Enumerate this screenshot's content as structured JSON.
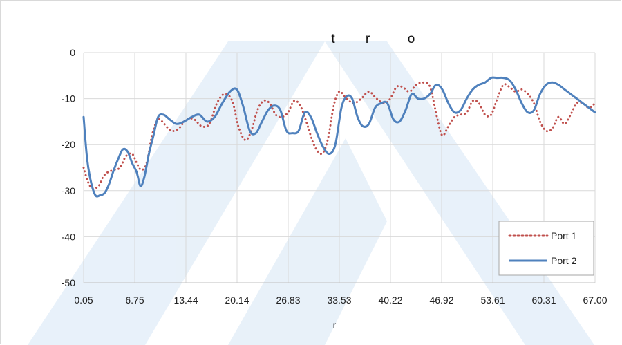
{
  "chart_data": {
    "type": "line",
    "title_fragments": [
      "t",
      "r",
      "o"
    ],
    "xlabel": "r",
    "ylabel": "",
    "x_tick_labels": [
      "0.05",
      "6.75",
      "13.44",
      "20.14",
      "26.83",
      "33.53",
      "40.22",
      "46.92",
      "53.61",
      "60.31",
      "67.00"
    ],
    "xlim": [
      0.05,
      67.0
    ],
    "ylim": [
      -50,
      0
    ],
    "y_ticks": [
      0,
      -10,
      -20,
      -30,
      -40,
      -50
    ],
    "grid": true,
    "legend_position": "bottom-right",
    "series": [
      {
        "name": "Port 1",
        "color": "#c0504d",
        "style": "dotted",
        "x": [
          0.05,
          0.6,
          1.2,
          2.0,
          2.6,
          3.2,
          4.0,
          4.8,
          5.6,
          6.4,
          7.0,
          7.6,
          8.3,
          9.0,
          9.8,
          10.6,
          11.5,
          12.5,
          13.5,
          14.5,
          15.5,
          16.5,
          17.5,
          18.5,
          19.5,
          20.3,
          21.2,
          22.0,
          22.8,
          23.6,
          24.4,
          25.2,
          26.0,
          26.8,
          27.6,
          28.4,
          29.2,
          30.2,
          31.2,
          32.0,
          32.8,
          33.5,
          34.2,
          34.8,
          35.5,
          36.4,
          37.4,
          38.4,
          39.4,
          40.2,
          41.0,
          41.8,
          42.7,
          43.6,
          44.5,
          45.4,
          46.3,
          47.0,
          47.8,
          48.6,
          49.4,
          50.2,
          51.0,
          51.8,
          52.6,
          53.4,
          54.2,
          55.0,
          55.8,
          56.6,
          57.4,
          58.2,
          59.0,
          59.8,
          60.6,
          61.4,
          62.2,
          63.0,
          63.8,
          64.6,
          65.4,
          66.2,
          67.0
        ],
        "y": [
          -25.0,
          -28.0,
          -29.5,
          -29.0,
          -27.0,
          -26.0,
          -25.5,
          -25.0,
          -22.5,
          -22.0,
          -24.0,
          -25.5,
          -24.0,
          -18.0,
          -14.5,
          -15.5,
          -17.0,
          -16.5,
          -14.5,
          -14.5,
          -16.0,
          -15.5,
          -11.0,
          -9.0,
          -10.5,
          -16.0,
          -19.0,
          -17.0,
          -12.5,
          -10.5,
          -11.0,
          -13.5,
          -14.0,
          -13.0,
          -10.5,
          -11.5,
          -15.0,
          -20.0,
          -22.0,
          -19.0,
          -11.5,
          -8.5,
          -9.5,
          -10.5,
          -11.0,
          -10.0,
          -8.5,
          -10.0,
          -11.0,
          -10.0,
          -7.5,
          -7.5,
          -8.5,
          -7.0,
          -6.5,
          -7.5,
          -14.0,
          -18.0,
          -16.0,
          -14.0,
          -13.5,
          -13.0,
          -10.5,
          -11.0,
          -13.5,
          -13.5,
          -10.0,
          -7.0,
          -7.5,
          -8.5,
          -8.0,
          -9.0,
          -11.0,
          -15.0,
          -17.0,
          -16.5,
          -14.0,
          -15.5,
          -13.5,
          -11.0,
          -11.0,
          -12.0,
          -11.0
        ]
      },
      {
        "name": "Port 2",
        "color": "#4f81bd",
        "style": "solid",
        "x": [
          0.05,
          0.5,
          1.0,
          1.6,
          2.2,
          2.8,
          3.4,
          4.0,
          4.6,
          5.2,
          5.8,
          6.4,
          7.0,
          7.5,
          8.0,
          8.6,
          9.2,
          9.8,
          10.5,
          11.3,
          12.2,
          13.2,
          14.2,
          15.2,
          16.2,
          17.2,
          18.2,
          19.2,
          20.1,
          20.9,
          21.8,
          22.6,
          23.4,
          24.2,
          25.0,
          25.8,
          26.6,
          27.4,
          28.2,
          29.0,
          29.8,
          30.6,
          31.4,
          32.2,
          33.0,
          33.8,
          34.5,
          35.2,
          35.9,
          36.6,
          37.4,
          38.2,
          39.0,
          39.8,
          40.6,
          41.4,
          42.2,
          43.0,
          43.8,
          44.6,
          45.4,
          46.2,
          47.0,
          47.8,
          48.6,
          49.4,
          50.2,
          51.0,
          51.8,
          52.6,
          53.4,
          54.2,
          55.0,
          55.8,
          56.6,
          57.4,
          58.2,
          59.0,
          59.8,
          60.6,
          61.4,
          62.2,
          63.0,
          63.8,
          64.6,
          65.4,
          66.2,
          67.0
        ],
        "y": [
          -14.0,
          -23.0,
          -28.0,
          -31.0,
          -31.0,
          -30.5,
          -28.5,
          -25.5,
          -23.0,
          -21.0,
          -21.5,
          -24.0,
          -26.0,
          -29.0,
          -27.0,
          -22.0,
          -18.0,
          -14.0,
          -13.5,
          -14.5,
          -15.5,
          -15.0,
          -14.0,
          -13.5,
          -15.0,
          -14.0,
          -11.0,
          -8.5,
          -8.0,
          -11.5,
          -17.0,
          -17.5,
          -15.0,
          -12.5,
          -11.5,
          -12.5,
          -17.0,
          -17.5,
          -17.0,
          -13.0,
          -14.0,
          -17.5,
          -20.5,
          -22.0,
          -20.0,
          -12.0,
          -9.5,
          -10.0,
          -14.0,
          -16.0,
          -15.5,
          -12.0,
          -11.0,
          -11.0,
          -14.5,
          -15.0,
          -12.5,
          -9.0,
          -10.0,
          -10.0,
          -9.0,
          -7.0,
          -8.0,
          -11.0,
          -13.0,
          -12.5,
          -10.0,
          -8.0,
          -7.0,
          -6.5,
          -5.5,
          -5.5,
          -5.5,
          -6.0,
          -8.0,
          -11.0,
          -13.0,
          -12.5,
          -9.0,
          -7.0,
          -6.5,
          -7.0,
          -8.0,
          -9.0,
          -10.0,
          -11.0,
          -12.0,
          -13.0
        ]
      }
    ]
  },
  "legend": {
    "items": [
      {
        "label": "Port 1"
      },
      {
        "label": "Port 2"
      }
    ]
  },
  "watermark": {
    "color": "#d6e6f5"
  }
}
